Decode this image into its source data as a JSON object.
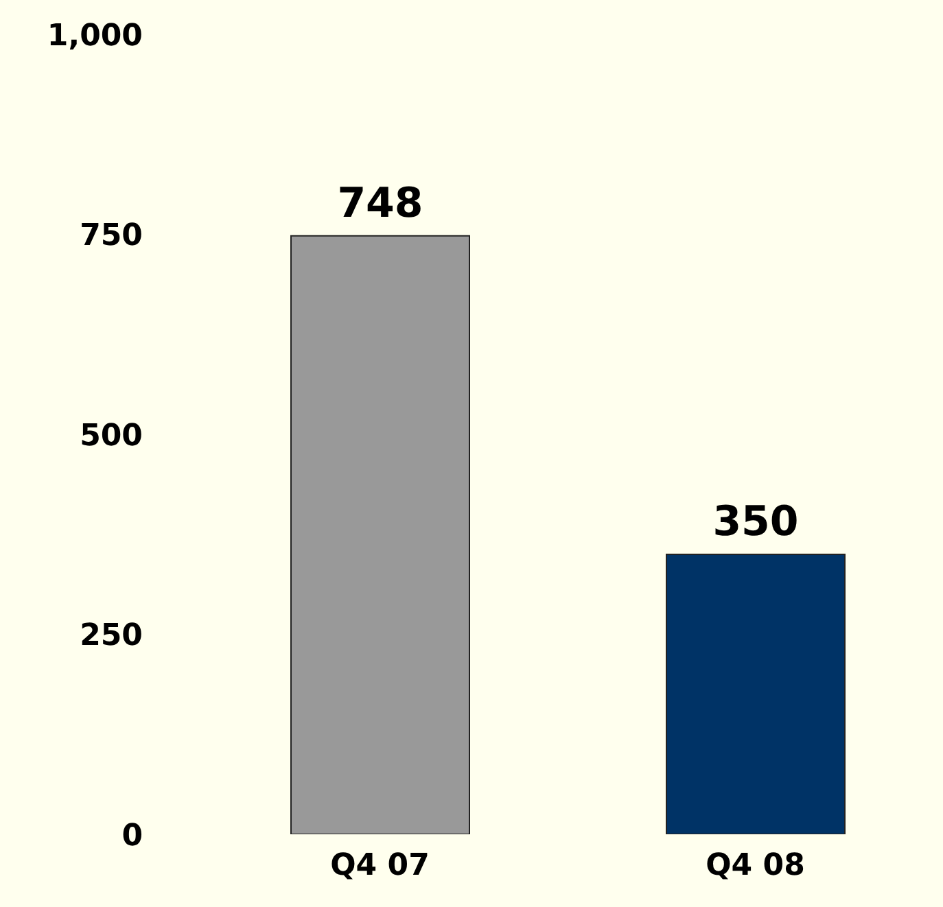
{
  "chart_data": {
    "type": "bar",
    "categories": [
      "Q4 07",
      "Q4 08"
    ],
    "values": [
      748,
      350
    ],
    "colors": [
      "#999999",
      "#003366"
    ],
    "ylim": [
      0,
      1000
    ],
    "yticks": [
      0,
      250,
      500,
      750,
      {
        "value": 1000,
        "label": "1,000"
      }
    ],
    "data_labels": true,
    "grid": false,
    "legend": false
  }
}
